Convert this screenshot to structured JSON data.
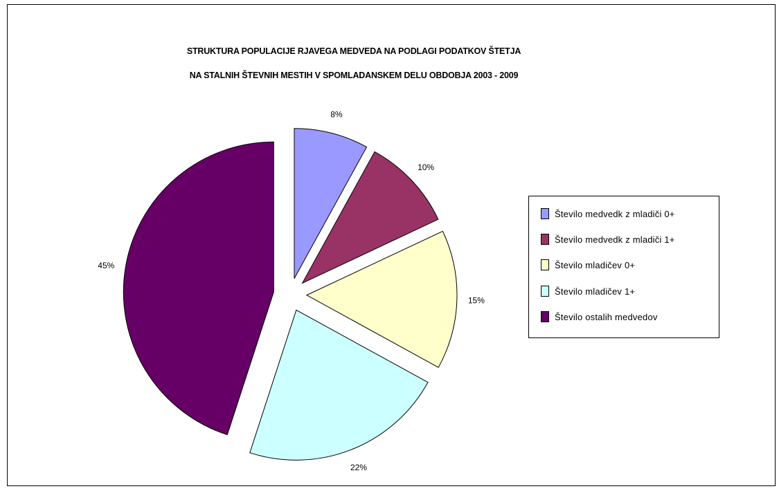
{
  "chart_data": {
    "type": "pie",
    "title": "STRUKTURA POPULACIJE RJAVEGA MEDVEDA NA PODLAGI PODATKOV ŠTETJA",
    "subtitle": "NA STALNIH ŠTEVNIH MESTIH V SPOMLADANSKEM DELU OBDOBJA 2003 - 2009",
    "legend_position": "right",
    "exploded": true,
    "slices": [
      {
        "label": "Število medvedk z mladiči 0+",
        "value": 8,
        "value_label": "8%",
        "color": "#9999ff"
      },
      {
        "label": "Število medvedk z mladiči 1+",
        "value": 10,
        "value_label": "10%",
        "color": "#993366"
      },
      {
        "label": "Število mladičev  0+",
        "value": 15,
        "value_label": "15%",
        "color": "#ffffcc"
      },
      {
        "label": "Število mladičev  1+",
        "value": 22,
        "value_label": "22%",
        "color": "#ccffff"
      },
      {
        "label": "Število ostalih medvedov",
        "value": 45,
        "value_label": "45%",
        "color": "#660066"
      }
    ]
  }
}
